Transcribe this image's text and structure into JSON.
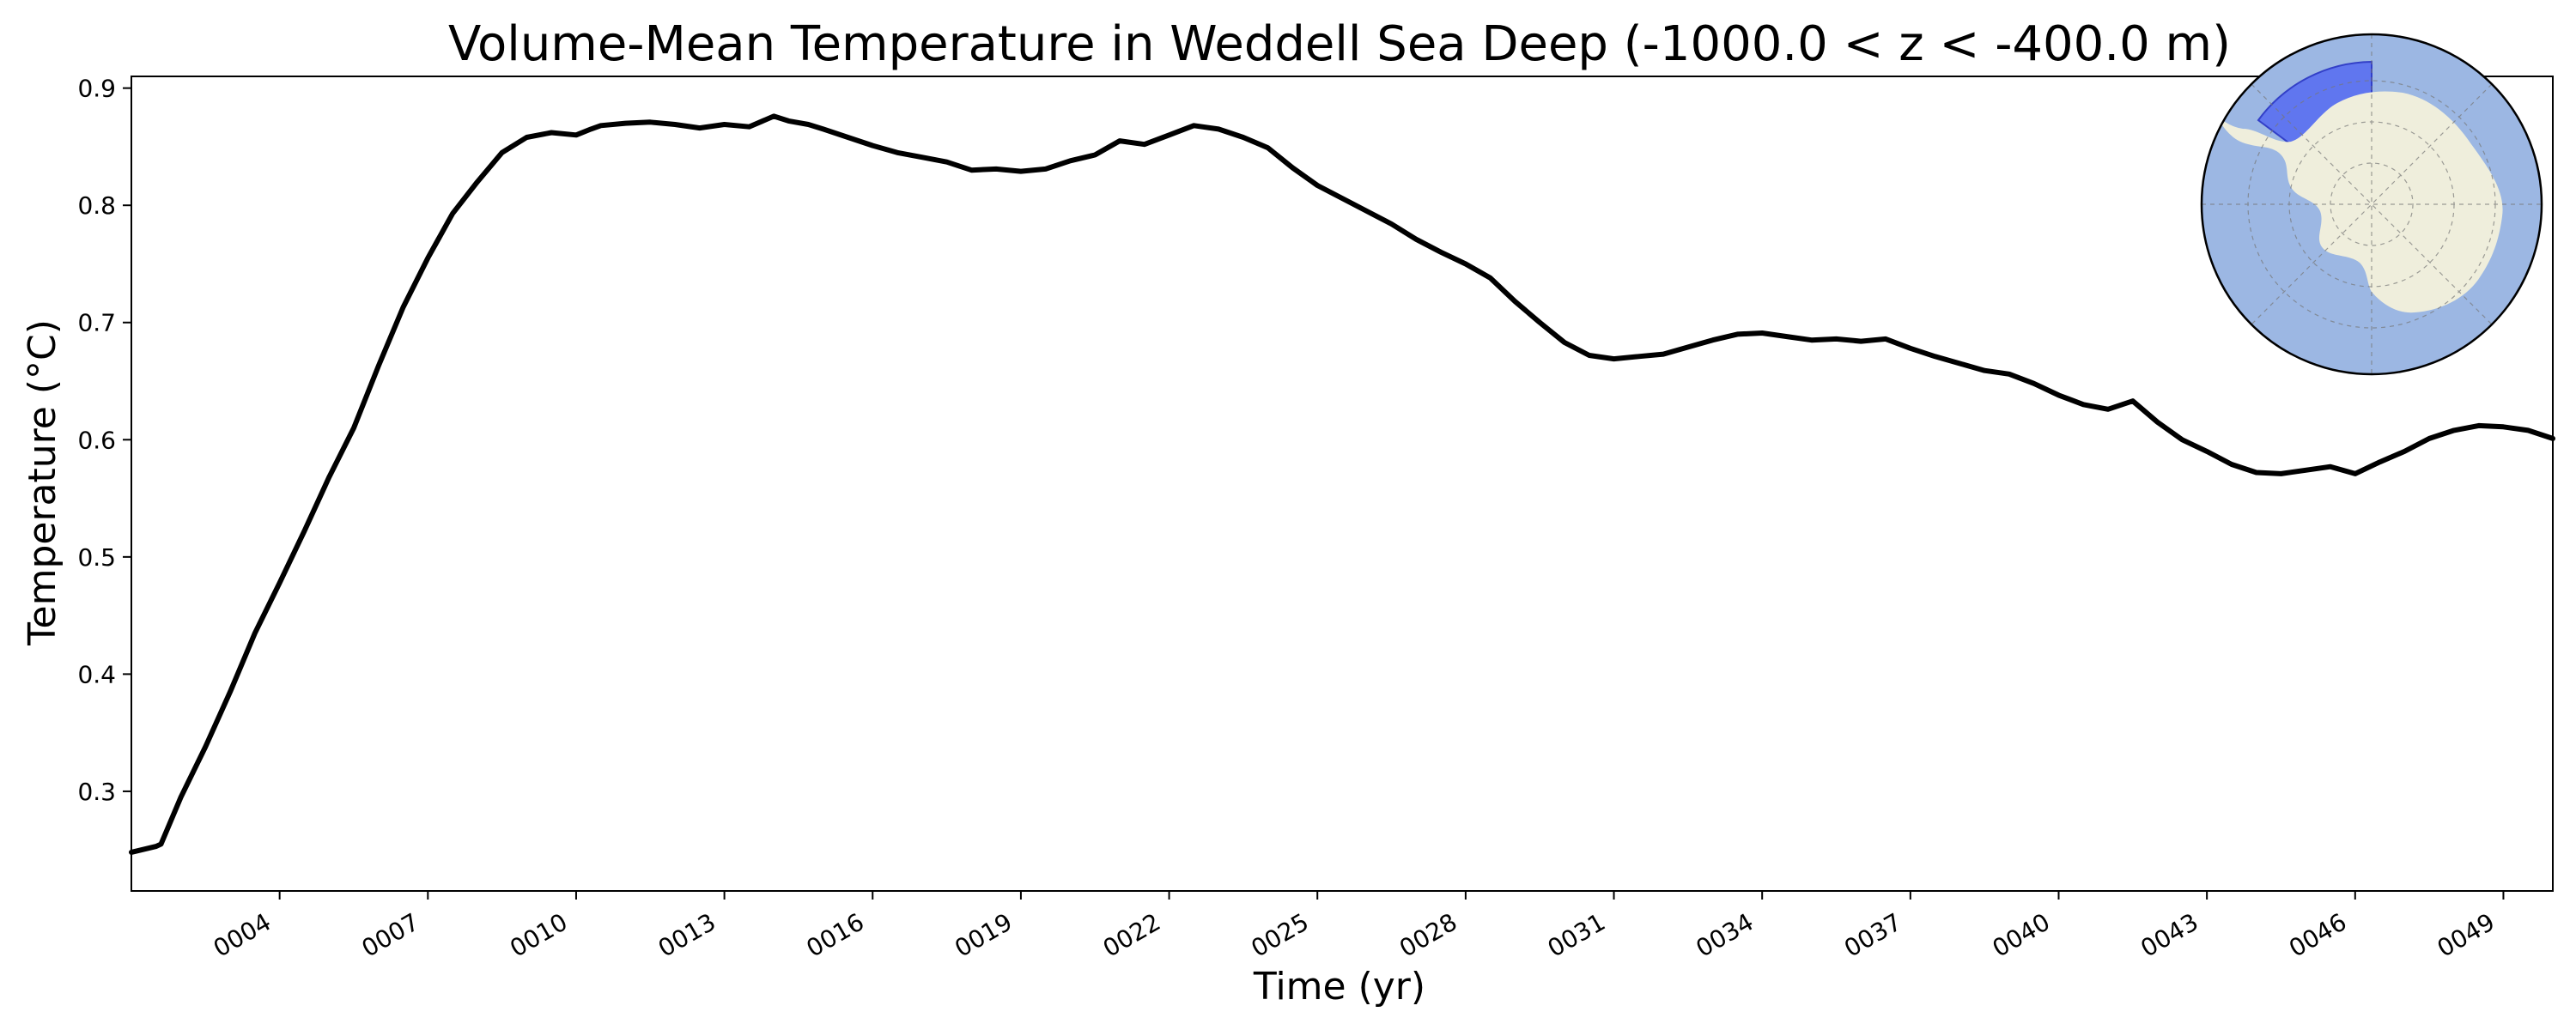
{
  "chart_data": {
    "type": "line",
    "title": "Volume-Mean Temperature in Weddell Sea Deep (-1000.0 < z < -400.0 m)",
    "xlabel": "Time (yr)",
    "ylabel": "Temperature (°C)",
    "xlim": [
      1,
      50
    ],
    "ylim": [
      0.215,
      0.91
    ],
    "x_ticks": [
      4,
      7,
      10,
      13,
      16,
      19,
      22,
      25,
      28,
      31,
      34,
      37,
      40,
      43,
      46,
      49
    ],
    "x_tick_labels": [
      "0004",
      "0007",
      "0010",
      "0013",
      "0016",
      "0019",
      "0022",
      "0025",
      "0028",
      "0031",
      "0034",
      "0037",
      "0040",
      "0043",
      "0046",
      "0049"
    ],
    "y_ticks": [
      0.3,
      0.4,
      0.5,
      0.6,
      0.7,
      0.8,
      0.9
    ],
    "y_tick_labels": [
      "0.3",
      "0.4",
      "0.5",
      "0.6",
      "0.7",
      "0.8",
      "0.9"
    ],
    "grid": false,
    "legend": "none",
    "inset": "polar stereographic map of Antarctica with the Weddell Sea region shaded blue",
    "colors": {
      "line": "#000000",
      "ocean": "#9cb7e3",
      "land": "#efeedc",
      "region": "#5a6ff0"
    },
    "series": [
      {
        "x": [
          1.0,
          1.3,
          1.5,
          1.6,
          2.0,
          2.5,
          3.0,
          3.5,
          4.0,
          4.5,
          5.0,
          5.5,
          6.0,
          6.5,
          7.0,
          7.5,
          8.0,
          8.5,
          9.0,
          9.5,
          10.0,
          10.3,
          10.5,
          11.0,
          11.5,
          12.0,
          12.5,
          13.0,
          13.5,
          14.0,
          14.3,
          14.7,
          15.0,
          15.5,
          16.0,
          16.5,
          17.0,
          17.5,
          18.0,
          18.5,
          19.0,
          19.5,
          20.0,
          20.5,
          21.0,
          21.5,
          22.0,
          22.5,
          23.0,
          23.5,
          24.0,
          24.5,
          25.0,
          25.5,
          26.0,
          26.5,
          27.0,
          27.5,
          28.0,
          28.5,
          29.0,
          29.5,
          30.0,
          30.5,
          31.0,
          31.5,
          32.0,
          32.5,
          33.0,
          33.5,
          34.0,
          34.5,
          35.0,
          35.5,
          36.0,
          36.5,
          37.0,
          37.5,
          38.0,
          38.5,
          39.0,
          39.5,
          40.0,
          40.5,
          41.0,
          41.5,
          42.0,
          42.5,
          43.0,
          43.5,
          44.0,
          44.5,
          45.0,
          45.5,
          46.0,
          46.5,
          47.0,
          47.5,
          48.0,
          48.5,
          49.0,
          49.5,
          50.0
        ],
        "y": [
          0.248,
          0.251,
          0.253,
          0.255,
          0.295,
          0.338,
          0.385,
          0.435,
          0.478,
          0.522,
          0.568,
          0.61,
          0.663,
          0.713,
          0.755,
          0.793,
          0.82,
          0.845,
          0.858,
          0.862,
          0.86,
          0.865,
          0.868,
          0.87,
          0.871,
          0.869,
          0.866,
          0.869,
          0.867,
          0.876,
          0.872,
          0.869,
          0.865,
          0.858,
          0.851,
          0.845,
          0.841,
          0.837,
          0.83,
          0.831,
          0.829,
          0.831,
          0.838,
          0.843,
          0.855,
          0.852,
          0.86,
          0.868,
          0.865,
          0.858,
          0.849,
          0.832,
          0.817,
          0.806,
          0.795,
          0.784,
          0.771,
          0.76,
          0.75,
          0.738,
          0.718,
          0.7,
          0.683,
          0.672,
          0.669,
          0.671,
          0.673,
          0.679,
          0.685,
          0.69,
          0.691,
          0.688,
          0.685,
          0.686,
          0.684,
          0.686,
          0.678,
          0.671,
          0.665,
          0.659,
          0.656,
          0.648,
          0.638,
          0.63,
          0.626,
          0.633,
          0.615,
          0.6,
          0.59,
          0.579,
          0.572,
          0.571,
          0.574,
          0.577,
          0.571,
          0.581,
          0.59,
          0.601,
          0.608,
          0.612,
          0.611,
          0.608,
          0.601
        ]
      }
    ]
  }
}
